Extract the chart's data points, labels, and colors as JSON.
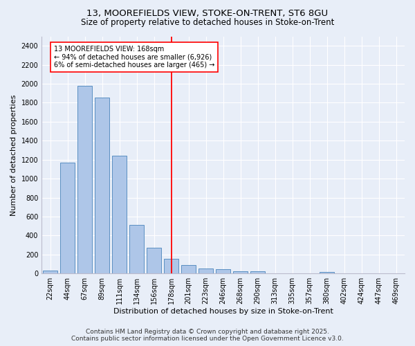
{
  "title1": "13, MOOREFIELDS VIEW, STOKE-ON-TRENT, ST6 8GU",
  "title2": "Size of property relative to detached houses in Stoke-on-Trent",
  "xlabel": "Distribution of detached houses by size in Stoke-on-Trent",
  "ylabel": "Number of detached properties",
  "categories": [
    "22sqm",
    "44sqm",
    "67sqm",
    "89sqm",
    "111sqm",
    "134sqm",
    "156sqm",
    "178sqm",
    "201sqm",
    "223sqm",
    "246sqm",
    "268sqm",
    "290sqm",
    "313sqm",
    "335sqm",
    "357sqm",
    "380sqm",
    "402sqm",
    "424sqm",
    "447sqm",
    "469sqm"
  ],
  "values": [
    30,
    1170,
    1980,
    1855,
    1240,
    515,
    275,
    155,
    90,
    50,
    45,
    25,
    20,
    0,
    0,
    0,
    15,
    0,
    0,
    0,
    0
  ],
  "bar_color": "#aec6e8",
  "bar_edge_color": "#5a8fc2",
  "vline_x_index": 7,
  "vline_color": "red",
  "annotation_title": "13 MOOREFIELDS VIEW: 168sqm",
  "annotation_line1": "← 94% of detached houses are smaller (6,926)",
  "annotation_line2": "6% of semi-detached houses are larger (465) →",
  "annotation_box_color": "red",
  "background_color": "#e8eef8",
  "plot_bg_color": "#e8eef8",
  "ylim": [
    0,
    2500
  ],
  "yticks": [
    0,
    200,
    400,
    600,
    800,
    1000,
    1200,
    1400,
    1600,
    1800,
    2000,
    2200,
    2400
  ],
  "footnote1": "Contains HM Land Registry data © Crown copyright and database right 2025.",
  "footnote2": "Contains public sector information licensed under the Open Government Licence v3.0.",
  "title_fontsize": 9.5,
  "subtitle_fontsize": 8.5,
  "axis_label_fontsize": 8,
  "tick_fontsize": 7,
  "annotation_fontsize": 7,
  "footnote_fontsize": 6.5
}
